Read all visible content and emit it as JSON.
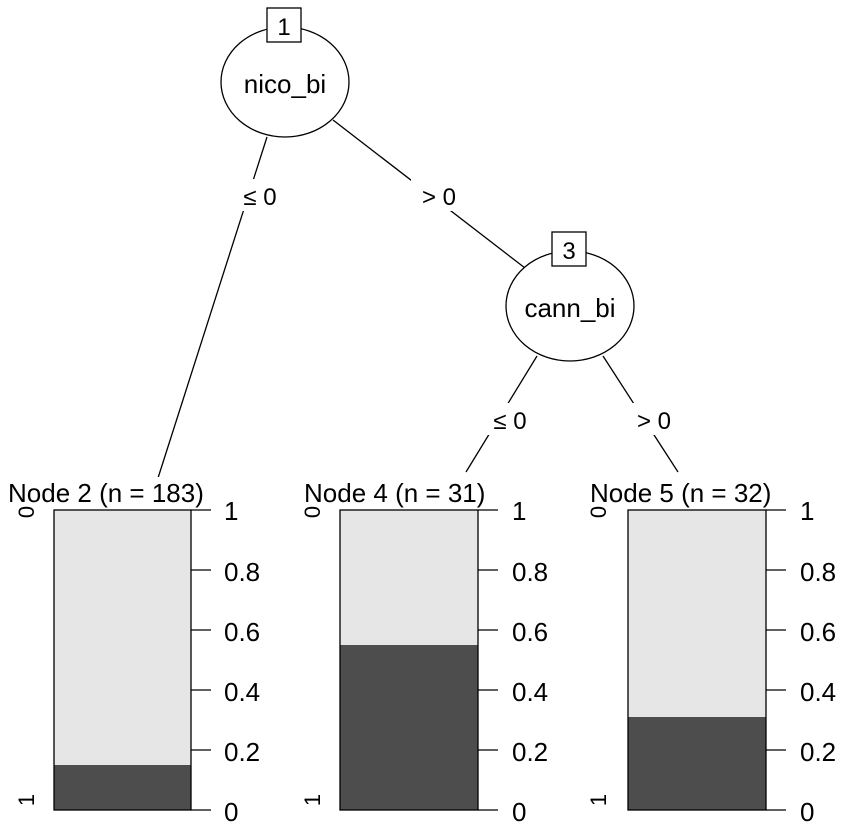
{
  "tree": {
    "inner_nodes": [
      {
        "id": "1",
        "variable": "nico_bi"
      },
      {
        "id": "3",
        "variable": "cann_bi"
      }
    ],
    "edges": [
      {
        "from": "1",
        "to": "2",
        "label": "≤ 0"
      },
      {
        "from": "1",
        "to": "3",
        "label": "> 0"
      },
      {
        "from": "3",
        "to": "4",
        "label": "≤ 0"
      },
      {
        "from": "3",
        "to": "5",
        "label": "> 0"
      }
    ],
    "terminal_nodes": [
      {
        "id": "2",
        "title": "Node 2 (n = 183)",
        "class_labels": [
          "0",
          "1"
        ],
        "proportion_1": 0.15
      },
      {
        "id": "4",
        "title": "Node 4 (n = 31)",
        "class_labels": [
          "0",
          "1"
        ],
        "proportion_1": 0.55
      },
      {
        "id": "5",
        "title": "Node 5 (n = 32)",
        "class_labels": [
          "0",
          "1"
        ],
        "proportion_1": 0.31
      }
    ],
    "axis_ticks": [
      "0",
      "0.2",
      "0.4",
      "0.6",
      "0.8",
      "1"
    ],
    "colors": {
      "class_0": "#e6e6e6",
      "class_1": "#4d4d4d"
    }
  }
}
